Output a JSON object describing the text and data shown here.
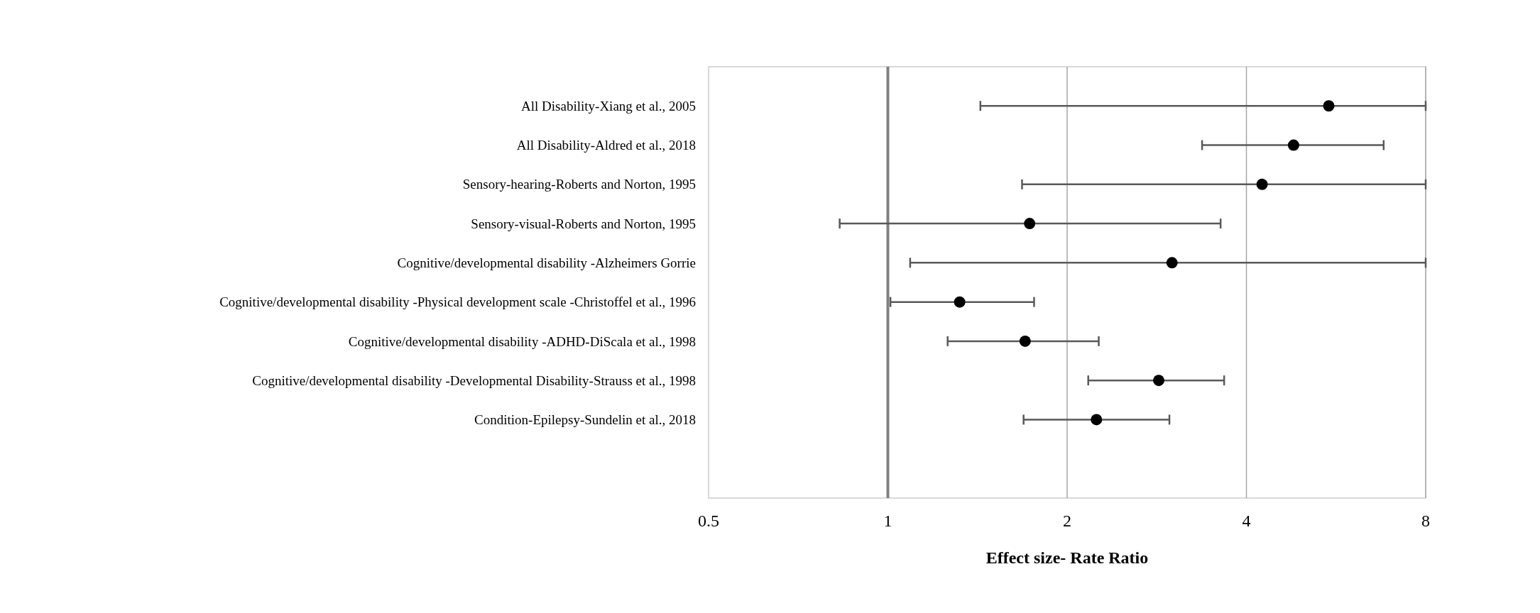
{
  "chart_data": {
    "type": "scatter",
    "orientation": "horizontal",
    "xlabel": "Effect size- Rate Ratio",
    "categories": [
      "All Disability-Xiang et al., 2005",
      "All Disability-Aldred et al., 2018",
      "Sensory-hearing-Roberts and Norton, 1995",
      "Sensory-visual-Roberts and Norton, 1995",
      "Cognitive/developmental disability -Alzheimers Gorrie",
      "Cognitive/developmental disability -Physical development scale -Christoffel et al., 1996",
      "Cognitive/developmental disability -ADHD-DiScala et al., 1998",
      "Cognitive/developmental disability -Developmental Disability-Strauss et al., 1998",
      "Condition-Epilepsy-Sundelin et al., 2018"
    ],
    "series": [
      {
        "color": "#000000",
        "values": [
          5.5,
          4.8,
          4.25,
          1.73,
          3.0,
          1.32,
          1.7,
          2.85,
          2.24
        ],
        "errors": [
          [
            1.43,
            8
          ],
          [
            3.37,
            6.8
          ],
          [
            1.68,
            8
          ],
          [
            0.83,
            3.62
          ],
          [
            1.09,
            8
          ],
          [
            1.01,
            1.76
          ],
          [
            1.26,
            2.26
          ],
          [
            2.17,
            3.67
          ],
          [
            1.69,
            2.97
          ]
        ]
      }
    ],
    "xlim": [
      0.5,
      8
    ],
    "xticks": [
      0.5,
      1,
      2,
      4,
      8
    ],
    "log": "x",
    "grid": "x",
    "marker": "circle",
    "ref_lines": [
      {
        "axis": "x",
        "value": 1,
        "color": "#808080"
      }
    ]
  }
}
